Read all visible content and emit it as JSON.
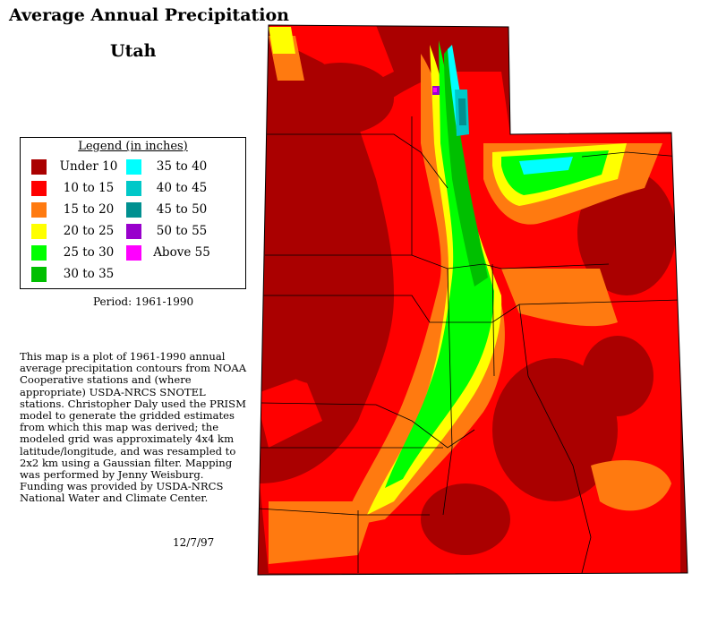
{
  "title": "Average Annual Precipitation",
  "subtitle": "Utah",
  "legend": {
    "title": "Legend (in inches)",
    "items": [
      {
        "label": "Under 10",
        "color": "#aa0000"
      },
      {
        "label": "10 to 15",
        "color": "#ff0000"
      },
      {
        "label": "15 to 20",
        "color": "#ff7a10"
      },
      {
        "label": "20 to 25",
        "color": "#ffff00"
      },
      {
        "label": "25 to 30",
        "color": "#00ff00"
      },
      {
        "label": "30 to 35",
        "color": "#00bf00"
      },
      {
        "label": "35 to 40",
        "color": "#00ffff"
      },
      {
        "label": "40 to 45",
        "color": "#00c8c8"
      },
      {
        "label": "45 to 50",
        "color": "#009090"
      },
      {
        "label": "50 to 55",
        "color": "#9900cc"
      },
      {
        "label": "Above 55",
        "color": "#ff00ff"
      }
    ]
  },
  "period": "Period: 1961-1990",
  "description": "This map is a plot of 1961-1990 annual average precipitation contours from NOAA Cooperative stations and (where appropriate) USDA-NRCS SNOTEL stations. Christopher Daly used the PRISM model to generate the gridded estimates from which this map was derived; the modeled grid was approximately 4x4 km latitude/longitude, and was resampled to 2x2 km using a Gaussian filter. Mapping was performed by Jenny Weisburg. Funding was provided by USDA-NRCS National Water and Climate Center.",
  "date": "12/7/97"
}
